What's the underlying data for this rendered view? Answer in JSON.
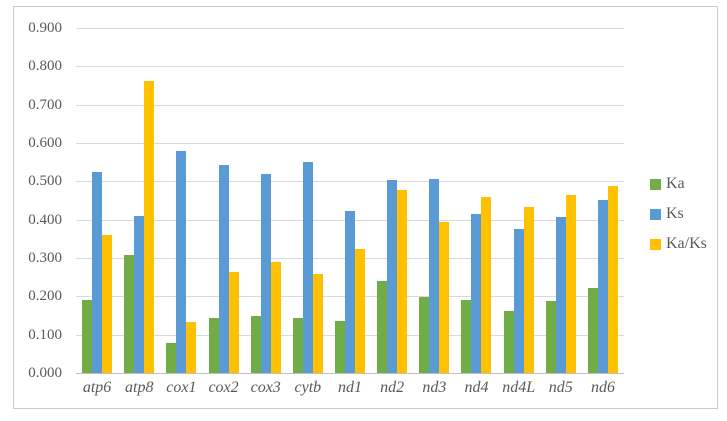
{
  "chart_data": {
    "type": "bar",
    "title": "",
    "xlabel": "",
    "ylabel": "",
    "categories": [
      "atp6",
      "atp8",
      "cox1",
      "cox2",
      "cox3",
      "cytb",
      "nd1",
      "nd2",
      "nd3",
      "nd4",
      "nd4L",
      "nd5",
      "nd6"
    ],
    "series": [
      {
        "name": "Ka",
        "color": "#70AD47",
        "values": [
          0.19,
          0.31,
          0.078,
          0.145,
          0.15,
          0.145,
          0.137,
          0.242,
          0.2,
          0.19,
          0.162,
          0.188,
          0.222
        ]
      },
      {
        "name": "Ks",
        "color": "#5B9BD5",
        "values": [
          0.525,
          0.41,
          0.58,
          0.543,
          0.52,
          0.553,
          0.425,
          0.505,
          0.507,
          0.417,
          0.377,
          0.407,
          0.453
        ]
      },
      {
        "name": "Ka/Ks",
        "color": "#FFC000",
        "values": [
          0.36,
          0.765,
          0.133,
          0.265,
          0.29,
          0.26,
          0.325,
          0.48,
          0.395,
          0.46,
          0.435,
          0.465,
          0.49
        ]
      }
    ],
    "y_ticks": [
      {
        "value": 0.0,
        "label": "0.000"
      },
      {
        "value": 0.1,
        "label": "0.100"
      },
      {
        "value": 0.2,
        "label": "0.200"
      },
      {
        "value": 0.3,
        "label": "0.300"
      },
      {
        "value": 0.4,
        "label": "0.400"
      },
      {
        "value": 0.5,
        "label": "0.500"
      },
      {
        "value": 0.6,
        "label": "0.600"
      },
      {
        "value": 0.7,
        "label": "0.700"
      },
      {
        "value": 0.8,
        "label": "0.800"
      },
      {
        "value": 0.9,
        "label": "0.900"
      }
    ],
    "ylim": [
      0,
      0.9
    ],
    "grid": true,
    "legend_position": "right"
  }
}
